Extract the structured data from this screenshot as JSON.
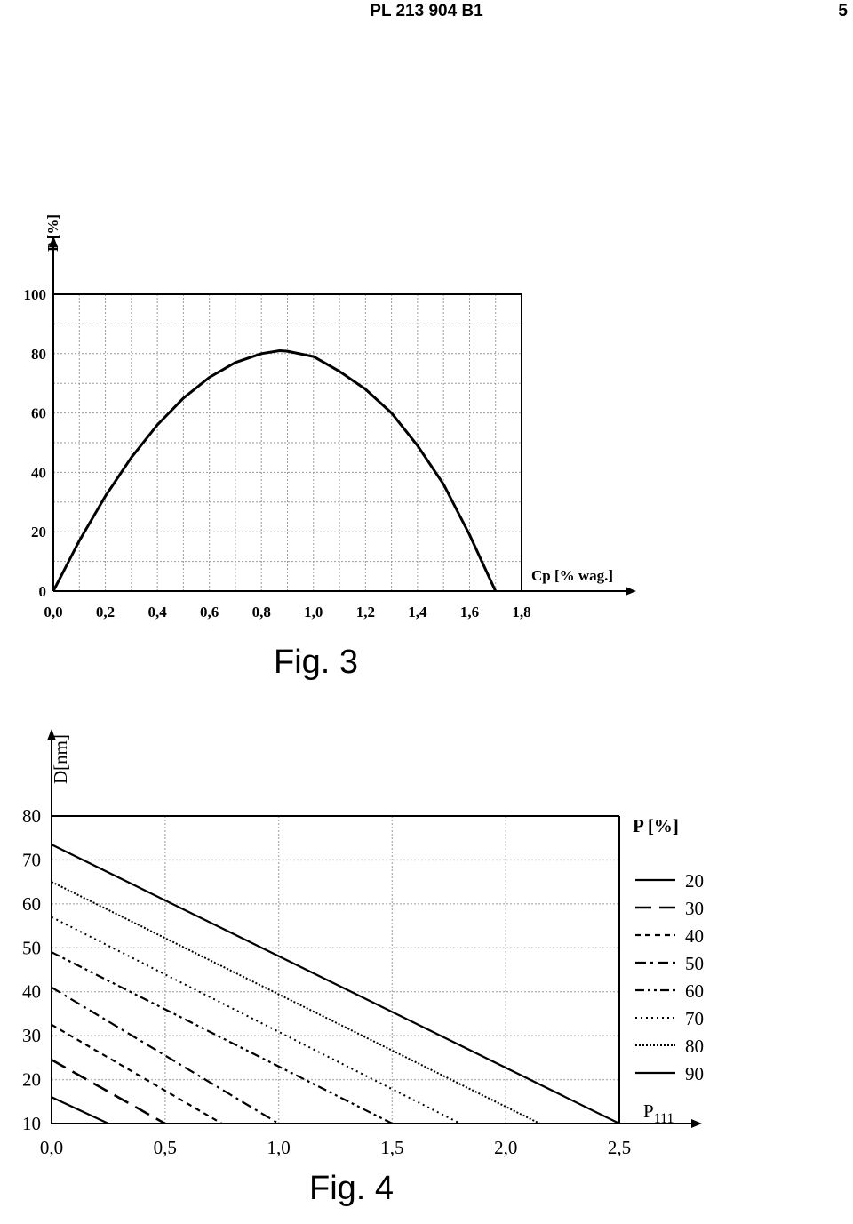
{
  "header": {
    "doc_number": "PL 213 904 B1",
    "page_number": "5"
  },
  "chart_data": [
    {
      "type": "line",
      "caption": "Fig. 3",
      "xlabel": "Cp [% wag.]",
      "ylabel": "P [%]",
      "xlim": [
        0.0,
        1.8
      ],
      "ylim": [
        0,
        100
      ],
      "x_ticks": [
        "0,0",
        "0,2",
        "0,4",
        "0,6",
        "0,8",
        "1,0",
        "1,2",
        "1,4",
        "1,6",
        "1,8"
      ],
      "y_ticks": [
        "0",
        "20",
        "40",
        "60",
        "80",
        "100"
      ],
      "grid": true,
      "line_color": "#000000",
      "series": [
        {
          "x": [
            0.0,
            0.1,
            0.2,
            0.3,
            0.4,
            0.5,
            0.6,
            0.7,
            0.8,
            0.87,
            0.9,
            1.0,
            1.1,
            1.2,
            1.3,
            1.4,
            1.5,
            1.6,
            1.7
          ],
          "values": [
            0,
            17,
            32,
            45,
            56,
            65,
            72,
            77,
            80,
            81,
            80.8,
            79,
            74,
            68,
            60,
            49,
            36,
            19,
            0
          ]
        }
      ]
    },
    {
      "type": "line",
      "caption": "Fig. 4",
      "xlabel": "P",
      "xlabel_sub": "111",
      "ylabel": "D[nm]",
      "xlim": [
        0.0,
        2.5
      ],
      "ylim": [
        10,
        80
      ],
      "x_ticks": [
        "0,0",
        "0,5",
        "1,0",
        "1,5",
        "2,0",
        "2,5"
      ],
      "y_ticks": [
        "10",
        "20",
        "30",
        "40",
        "50",
        "60",
        "70",
        "80"
      ],
      "grid": true,
      "legend_title": "P [%]",
      "legend_position": "right",
      "series": [
        {
          "name": "20",
          "style": "solid",
          "x": [
            0.0,
            0.25
          ],
          "values": [
            16,
            10
          ]
        },
        {
          "name": "30",
          "style": "long-dash",
          "x": [
            0.0,
            0.5
          ],
          "values": [
            24.5,
            10
          ]
        },
        {
          "name": "40",
          "style": "short-dash",
          "x": [
            0.0,
            0.75
          ],
          "values": [
            32.5,
            10
          ]
        },
        {
          "name": "50",
          "style": "dash-dot",
          "x": [
            0.0,
            1.0
          ],
          "values": [
            41,
            10
          ]
        },
        {
          "name": "60",
          "style": "dash-dot-dot",
          "x": [
            0.0,
            1.5
          ],
          "values": [
            49,
            10
          ]
        },
        {
          "name": "70",
          "style": "dotted",
          "x": [
            0.0,
            1.8
          ],
          "values": [
            57,
            10
          ]
        },
        {
          "name": "80",
          "style": "dense-dot",
          "x": [
            0.0,
            2.15
          ],
          "values": [
            65,
            10
          ]
        },
        {
          "name": "90",
          "style": "solid",
          "x": [
            0.0,
            2.5
          ],
          "values": [
            73.5,
            10
          ]
        }
      ]
    }
  ]
}
